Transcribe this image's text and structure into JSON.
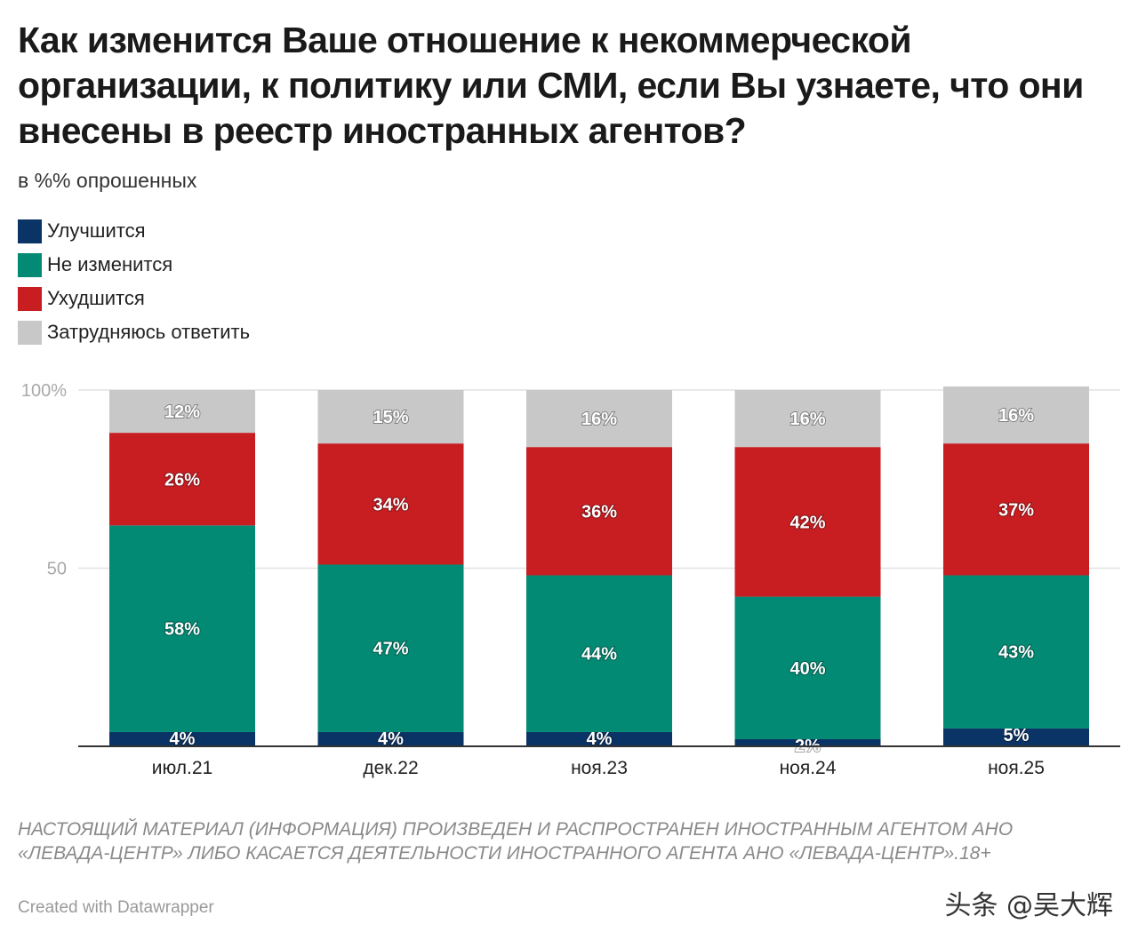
{
  "title": "Как изменится Ваше отношение к некоммерческой организации, к политику или СМИ, если Вы узнаете, что они внесены в реестр иностранных агентов?",
  "subtitle": "в %% опрошенных",
  "legend": [
    {
      "label": "Улучшится",
      "color": "#0b3466"
    },
    {
      "label": "Не изменится",
      "color": "#038a74"
    },
    {
      "label": "Ухудшится",
      "color": "#c81d21"
    },
    {
      "label": "Затрудняюсь ответить",
      "color": "#c8c8c8"
    }
  ],
  "chart_data": {
    "type": "bar",
    "stacked": true,
    "categories": [
      "июл.21",
      "дек.22",
      "ноя.23",
      "ноя.24",
      "ноя.25"
    ],
    "series": [
      {
        "name": "Улучшится",
        "color": "#0b3466",
        "values": [
          4,
          4,
          4,
          2,
          5
        ]
      },
      {
        "name": "Не изменится",
        "color": "#038a74",
        "values": [
          58,
          47,
          44,
          40,
          43
        ]
      },
      {
        "name": "Ухудшится",
        "color": "#c81d21",
        "values": [
          26,
          34,
          36,
          42,
          37
        ]
      },
      {
        "name": "Затрудняюсь ответить",
        "color": "#c8c8c8",
        "values": [
          12,
          15,
          16,
          16,
          16
        ]
      }
    ],
    "value_suffix": "%",
    "yticks": [
      {
        "value": 50,
        "label": "50"
      },
      {
        "value": 100,
        "label": "100%"
      }
    ],
    "ylim": [
      0,
      100
    ],
    "grid": true
  },
  "footer": {
    "source_text": "НАСТОЯЩИЙ МАТЕРИАЛ (ИНФОРМАЦИЯ) ПРОИЗВЕДЕН И РАСПРОСТРАНЕН ИНОСТРАННЫМ АГЕНТОМ АНО «ЛЕВАДА-ЦЕНТР» ЛИБО КАСАЕТСЯ ДЕЯТЕЛЬНОСТИ ИНОСТРАННОГО АГЕНТА АНО «ЛЕВАДА-ЦЕНТР».18+",
    "credit": "Created with Datawrapper",
    "watermark": "头条 @吴大辉"
  }
}
